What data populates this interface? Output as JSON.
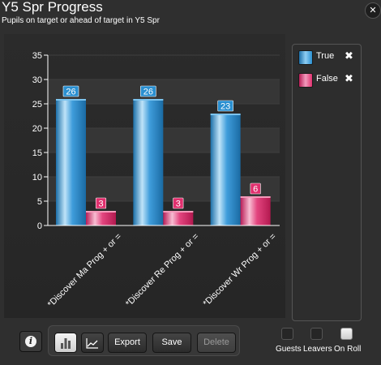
{
  "header": {
    "title": "Y5 Spr Progress",
    "subtitle": "Pupils on target or ahead of target in Y5 Spr",
    "close_icon": "close-icon"
  },
  "colors": {
    "true_series": "#2a8fd0",
    "false_series": "#e0306e",
    "background": "#2f2f2f"
  },
  "chart_data": {
    "type": "bar",
    "categories": [
      "*Discover Ma Prog + or =",
      "*Discover Re Prog + or =",
      "*Discover Wr Prog + or ="
    ],
    "series": [
      {
        "name": "True",
        "values": [
          26,
          26,
          23
        ]
      },
      {
        "name": "False",
        "values": [
          3,
          3,
          6
        ]
      }
    ],
    "ylim": [
      0,
      35
    ],
    "yticks": [
      0,
      5,
      10,
      15,
      20,
      25,
      30,
      35
    ],
    "grid": true,
    "legend": "right",
    "data_labels": true
  },
  "legend": {
    "items": [
      {
        "label": "True",
        "remove_icon": "close-icon"
      },
      {
        "label": "False",
        "remove_icon": "close-icon"
      }
    ]
  },
  "footer": {
    "info_icon": "info-icon",
    "bar_chart_icon": "bar-chart-icon",
    "line_chart_icon": "line-chart-icon",
    "export_label": "Export",
    "save_label": "Save",
    "delete_label": "Delete",
    "filters": [
      {
        "label": "Guests",
        "checked": false
      },
      {
        "label": "Leavers",
        "checked": false
      },
      {
        "label": "On Roll",
        "checked": true
      }
    ]
  }
}
